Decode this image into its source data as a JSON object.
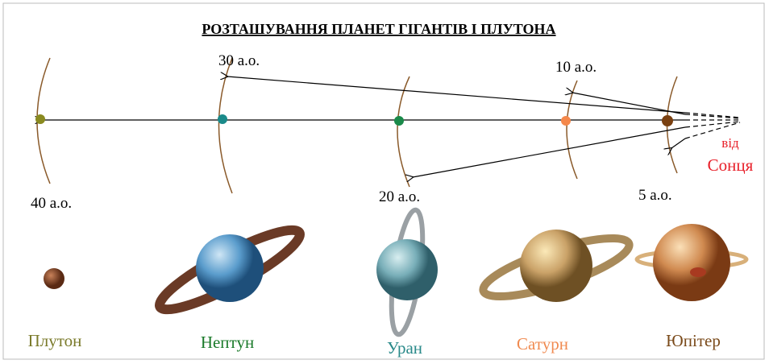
{
  "title": "РОЗТАШУВАННЯ ПЛАНЕТ ГІГАНТІВ І ПЛУТОНА",
  "sun_label": [
    "від",
    "Сонця"
  ],
  "distances": [
    "40 а.о.",
    "30 а.о.",
    "20 а.о.",
    "10 а.о.",
    "5 а.о."
  ],
  "planets": [
    "Плутон",
    "Нептун",
    "Уран",
    "Сатурн",
    "Юпітер"
  ]
}
